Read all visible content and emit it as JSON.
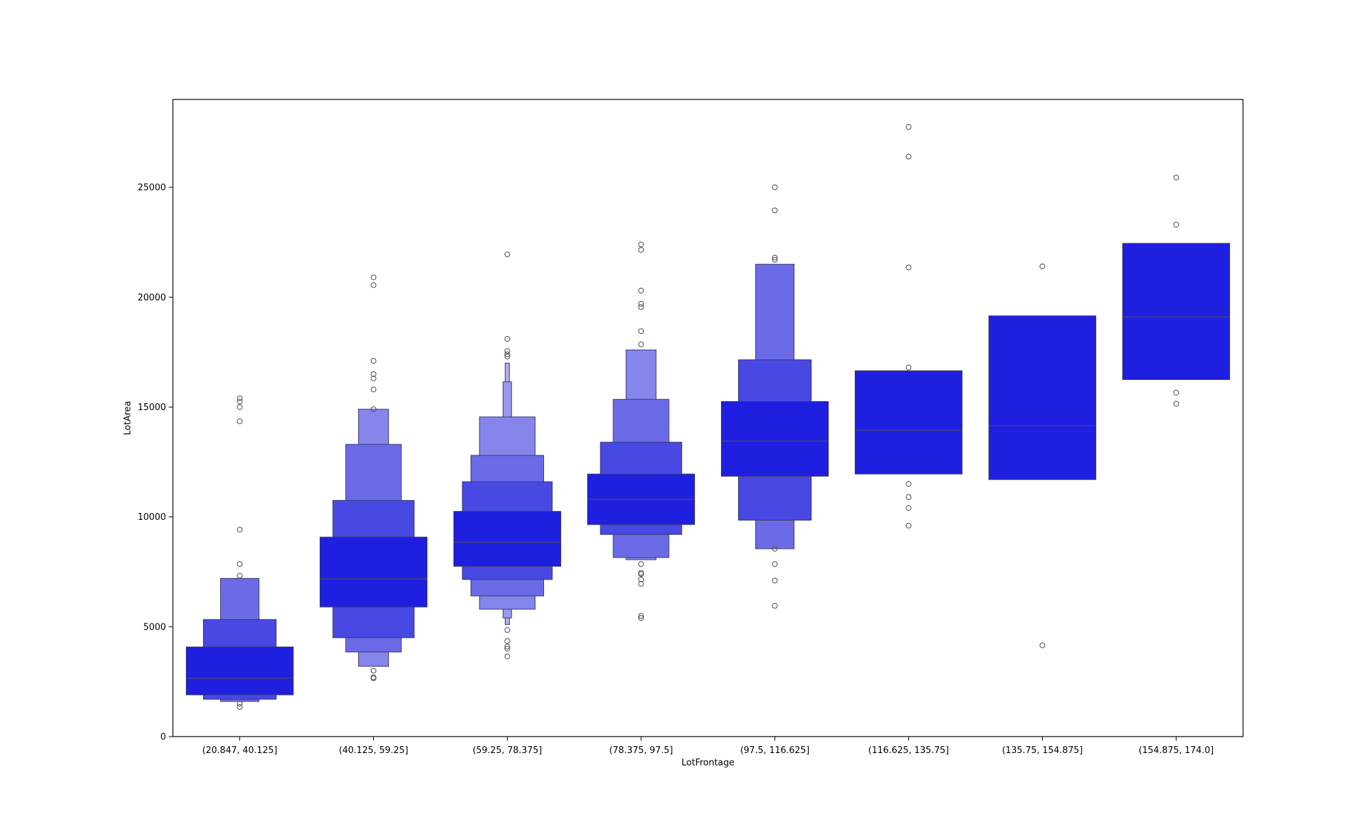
{
  "chart_data": {
    "type": "boxen",
    "xlabel": "LotFrontage",
    "ylabel": "LotArea",
    "ylim": [
      0,
      29000
    ],
    "yticks": [
      0,
      5000,
      10000,
      15000,
      20000,
      25000
    ],
    "grid": false,
    "legend": "none",
    "colors": {
      "base": "#1f1fe0",
      "outline": "#3a3a6e",
      "median": "#4a4a6a",
      "outlier": "#555555"
    },
    "categories": [
      "(20.847, 40.125]",
      "(40.125, 59.25]",
      "(59.25, 78.375]",
      "(78.375, 97.5]",
      "(97.5, 116.625]",
      "(116.625, 135.75]",
      "(135.75, 154.875]",
      "(154.875, 174.0]"
    ],
    "boxes": [
      {
        "median": 2650,
        "levels": [
          [
            1900,
            4080
          ],
          [
            1700,
            5330
          ],
          [
            1600,
            7200
          ]
        ],
        "outliers": [
          15400,
          15250,
          15000,
          14350,
          9420,
          7850,
          7320,
          1500,
          1350
        ]
      },
      {
        "median": 7180,
        "levels": [
          [
            5900,
            9080
          ],
          [
            4500,
            10750
          ],
          [
            3850,
            13300
          ],
          [
            3200,
            14900
          ]
        ],
        "outliers": [
          20900,
          20550,
          17100,
          16500,
          16300,
          15800,
          14900,
          3000,
          2700,
          2650
        ]
      },
      {
        "median": 8850,
        "levels": [
          [
            7750,
            10250
          ],
          [
            7150,
            11600
          ],
          [
            6400,
            12800
          ],
          [
            5800,
            14550
          ],
          [
            5400,
            16150
          ],
          [
            5100,
            17000
          ]
        ],
        "outliers": [
          21950,
          18100,
          17550,
          17400,
          17300,
          4850,
          4350,
          4100,
          4000,
          3650
        ]
      },
      {
        "median": 10800,
        "levels": [
          [
            9650,
            11950
          ],
          [
            9200,
            13400
          ],
          [
            8150,
            15350
          ],
          [
            8050,
            17600
          ]
        ],
        "outliers": [
          22400,
          22150,
          20300,
          19700,
          19550,
          18450,
          17850,
          7850,
          7450,
          7400,
          7150,
          6950,
          5500,
          5400
        ]
      },
      {
        "median": 13450,
        "levels": [
          [
            11850,
            15250
          ],
          [
            9850,
            17150
          ],
          [
            8550,
            21500
          ]
        ],
        "outliers": [
          25000,
          23950,
          21800,
          21700,
          8550,
          7850,
          7100,
          5950
        ]
      },
      {
        "median": 13950,
        "levels": [
          [
            11950,
            16650
          ]
        ],
        "outliers": [
          27750,
          26400,
          21350,
          16800,
          11500,
          10900,
          10400,
          9600
        ]
      },
      {
        "median": 14150,
        "levels": [
          [
            11700,
            19150
          ]
        ],
        "outliers": [
          21400,
          4150
        ]
      },
      {
        "median": 19100,
        "levels": [
          [
            16250,
            22450
          ]
        ],
        "outliers": [
          25450,
          23300,
          15650,
          15150
        ]
      }
    ]
  }
}
